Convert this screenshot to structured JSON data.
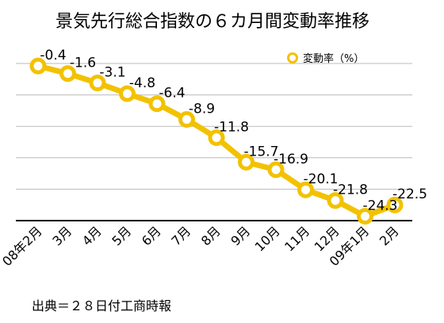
{
  "chart_data": {
    "type": "line",
    "title": "景気先行総合指数の６カ月間変動率推移",
    "categories": [
      "08年2月",
      "3月",
      "4月",
      "5月",
      "6月",
      "7月",
      "8月",
      "9月",
      "10月",
      "11月",
      "12月",
      "09年1月",
      "2月"
    ],
    "series": [
      {
        "name": "変動率（%）",
        "values": [
          -0.4,
          -1.6,
          -3.1,
          -4.8,
          -6.4,
          -8.9,
          -11.8,
          -15.7,
          -16.9,
          -20.1,
          -21.8,
          -24.3,
          -22.5
        ],
        "labels": [
          "-0.4",
          "-1.6",
          "-3.1",
          "-4.8",
          "-6.4",
          "-8.9",
          "-11.8",
          "-15.7",
          "-16.9",
          "-20.1",
          "-21.8",
          "-24.3",
          "-22.5"
        ]
      }
    ],
    "ylim": [
      -25,
      0
    ],
    "grid": true,
    "legend": "top-right",
    "source": "出典＝２８日付工商時報",
    "colors": {
      "line": "#F2C200",
      "marker_fill": "#FFFFFF",
      "grid": "#BBBBBB",
      "axis": "#000000"
    }
  }
}
